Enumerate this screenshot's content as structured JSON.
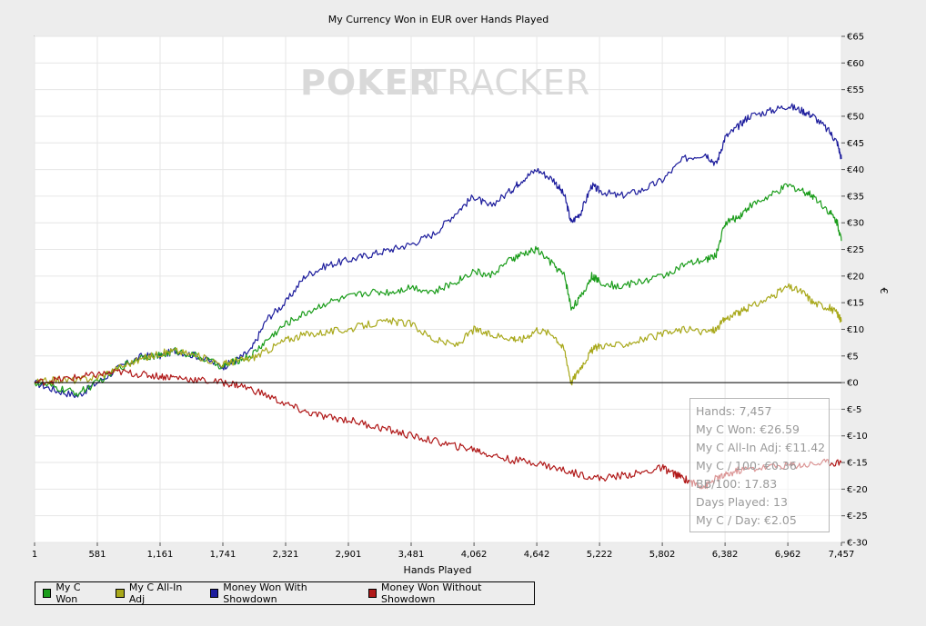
{
  "chart_data": {
    "type": "line",
    "title": "My Currency Won in EUR over Hands Played",
    "xlabel": "Hands Played",
    "ylabel": "€",
    "xlim": [
      1,
      7457
    ],
    "ylim": [
      -30,
      65
    ],
    "x_ticks": [
      "1",
      "581",
      "1,161",
      "1,741",
      "2,321",
      "2,901",
      "3,481",
      "4,062",
      "4,642",
      "5,222",
      "5,802",
      "6,382",
      "6,962",
      "7,457"
    ],
    "y_ticks": [
      "€65",
      "€60",
      "€55",
      "€50",
      "€45",
      "€40",
      "€35",
      "€30",
      "€25",
      "€20",
      "€15",
      "€10",
      "€5",
      "€0",
      "€-5",
      "€-10",
      "€-15",
      "€-20",
      "€-25",
      "€-30"
    ],
    "grid": true,
    "legend_position": "bottom-left",
    "watermark": {
      "part1": "POKER",
      "part2": "TRACKER"
    },
    "series": [
      {
        "name": "Money Won With Showdown",
        "color": "#1c1c9c",
        "points": [
          [
            1,
            0
          ],
          [
            200,
            -1.5
          ],
          [
            400,
            -2.5
          ],
          [
            581,
            0
          ],
          [
            800,
            3
          ],
          [
            1000,
            5
          ],
          [
            1161,
            5
          ],
          [
            1300,
            6
          ],
          [
            1500,
            5
          ],
          [
            1741,
            3
          ],
          [
            1850,
            4
          ],
          [
            2000,
            6
          ],
          [
            2150,
            12
          ],
          [
            2321,
            15
          ],
          [
            2500,
            20
          ],
          [
            2700,
            22
          ],
          [
            2901,
            23
          ],
          [
            3100,
            24
          ],
          [
            3300,
            25
          ],
          [
            3481,
            26
          ],
          [
            3700,
            28
          ],
          [
            3900,
            32
          ],
          [
            4062,
            35
          ],
          [
            4200,
            33
          ],
          [
            4400,
            36
          ],
          [
            4500,
            38
          ],
          [
            4642,
            40
          ],
          [
            4800,
            38
          ],
          [
            4900,
            35
          ],
          [
            4960,
            30
          ],
          [
            5050,
            32
          ],
          [
            5150,
            37
          ],
          [
            5222,
            36
          ],
          [
            5400,
            35
          ],
          [
            5600,
            36
          ],
          [
            5802,
            38
          ],
          [
            6000,
            42
          ],
          [
            6200,
            43
          ],
          [
            6300,
            41
          ],
          [
            6382,
            46
          ],
          [
            6500,
            48
          ],
          [
            6600,
            50
          ],
          [
            6800,
            51
          ],
          [
            6962,
            52
          ],
          [
            7100,
            51
          ],
          [
            7200,
            50
          ],
          [
            7350,
            47
          ],
          [
            7420,
            45
          ],
          [
            7457,
            42
          ]
        ]
      },
      {
        "name": "My C Won",
        "color": "#1a9c1a",
        "points": [
          [
            1,
            0
          ],
          [
            200,
            -1
          ],
          [
            400,
            -2
          ],
          [
            581,
            0
          ],
          [
            800,
            3
          ],
          [
            1000,
            5
          ],
          [
            1161,
            5
          ],
          [
            1300,
            6
          ],
          [
            1500,
            5
          ],
          [
            1741,
            3
          ],
          [
            1850,
            4
          ],
          [
            2000,
            5
          ],
          [
            2150,
            8
          ],
          [
            2321,
            11
          ],
          [
            2500,
            13
          ],
          [
            2700,
            15
          ],
          [
            2901,
            16
          ],
          [
            3100,
            17
          ],
          [
            3300,
            17
          ],
          [
            3481,
            18
          ],
          [
            3700,
            17
          ],
          [
            3900,
            19
          ],
          [
            4062,
            21
          ],
          [
            4200,
            20
          ],
          [
            4400,
            23
          ],
          [
            4500,
            24
          ],
          [
            4642,
            25
          ],
          [
            4800,
            22
          ],
          [
            4900,
            20
          ],
          [
            4960,
            14
          ],
          [
            5050,
            16
          ],
          [
            5150,
            20
          ],
          [
            5222,
            19
          ],
          [
            5400,
            18
          ],
          [
            5600,
            19
          ],
          [
            5802,
            20
          ],
          [
            6000,
            22
          ],
          [
            6200,
            23
          ],
          [
            6300,
            24
          ],
          [
            6382,
            30
          ],
          [
            6500,
            31
          ],
          [
            6600,
            33
          ],
          [
            6800,
            35
          ],
          [
            6962,
            37
          ],
          [
            7100,
            36
          ],
          [
            7200,
            35
          ],
          [
            7350,
            32
          ],
          [
            7420,
            30
          ],
          [
            7457,
            26.59
          ]
        ]
      },
      {
        "name": "My C All-In Adj",
        "color": "#a8a81a",
        "points": [
          [
            1,
            0
          ],
          [
            200,
            0.5
          ],
          [
            400,
            0.5
          ],
          [
            581,
            1
          ],
          [
            800,
            3
          ],
          [
            1000,
            4.5
          ],
          [
            1161,
            5.5
          ],
          [
            1300,
            6
          ],
          [
            1500,
            5
          ],
          [
            1741,
            3.5
          ],
          [
            1850,
            4
          ],
          [
            2000,
            4.5
          ],
          [
            2150,
            6
          ],
          [
            2321,
            8
          ],
          [
            2500,
            9
          ],
          [
            2700,
            9.5
          ],
          [
            2901,
            10
          ],
          [
            3100,
            11
          ],
          [
            3300,
            11.5
          ],
          [
            3481,
            11
          ],
          [
            3700,
            8
          ],
          [
            3900,
            7
          ],
          [
            4062,
            10
          ],
          [
            4200,
            9
          ],
          [
            4400,
            8.5
          ],
          [
            4500,
            8
          ],
          [
            4642,
            10
          ],
          [
            4800,
            9
          ],
          [
            4900,
            6
          ],
          [
            4960,
            0
          ],
          [
            5050,
            3
          ],
          [
            5150,
            6
          ],
          [
            5222,
            7
          ],
          [
            5400,
            7
          ],
          [
            5600,
            8
          ],
          [
            5802,
            9
          ],
          [
            6000,
            10
          ],
          [
            6200,
            9.5
          ],
          [
            6300,
            10
          ],
          [
            6382,
            12
          ],
          [
            6500,
            13
          ],
          [
            6600,
            14
          ],
          [
            6800,
            16
          ],
          [
            6962,
            18
          ],
          [
            7100,
            17
          ],
          [
            7200,
            15
          ],
          [
            7350,
            14
          ],
          [
            7420,
            13
          ],
          [
            7457,
            11.42
          ]
        ]
      },
      {
        "name": "Money Won Without Showdown",
        "color": "#b01818",
        "points": [
          [
            1,
            0
          ],
          [
            200,
            0.5
          ],
          [
            400,
            1
          ],
          [
            581,
            1.5
          ],
          [
            800,
            2
          ],
          [
            1000,
            1.5
          ],
          [
            1161,
            1.2
          ],
          [
            1300,
            1
          ],
          [
            1500,
            0.5
          ],
          [
            1741,
            0
          ],
          [
            1900,
            -0.5
          ],
          [
            2100,
            -2
          ],
          [
            2321,
            -4
          ],
          [
            2500,
            -5.5
          ],
          [
            2700,
            -6.5
          ],
          [
            2901,
            -7
          ],
          [
            3100,
            -8
          ],
          [
            3300,
            -9
          ],
          [
            3481,
            -10
          ],
          [
            3700,
            -11
          ],
          [
            3900,
            -12
          ],
          [
            4062,
            -12.5
          ],
          [
            4200,
            -13.5
          ],
          [
            4400,
            -14.5
          ],
          [
            4642,
            -15
          ],
          [
            4800,
            -16
          ],
          [
            5000,
            -17
          ],
          [
            5222,
            -18
          ],
          [
            5400,
            -17.5
          ],
          [
            5600,
            -17
          ],
          [
            5802,
            -16
          ],
          [
            5900,
            -17
          ],
          [
            6000,
            -18
          ],
          [
            6100,
            -19
          ],
          [
            6200,
            -19.5
          ],
          [
            6300,
            -18
          ],
          [
            6382,
            -17.5
          ],
          [
            6500,
            -16.5
          ],
          [
            6700,
            -16
          ],
          [
            6962,
            -15.5
          ],
          [
            7100,
            -15.5
          ],
          [
            7300,
            -15
          ],
          [
            7457,
            -15
          ]
        ]
      }
    ]
  },
  "stats": [
    "Hands: 7,457",
    "My C Won: €26.59",
    "My C All-In Adj: €11.42",
    "My C / 100: €0.36",
    "BB/100: 17.83",
    "Days Played: 13",
    "My C / Day: €2.05"
  ],
  "legend": [
    {
      "label": "My C Won",
      "color": "#1a9c1a"
    },
    {
      "label": "My C All-In Adj",
      "color": "#a8a81a"
    },
    {
      "label": "Money Won With Showdown",
      "color": "#1c1c9c"
    },
    {
      "label": "Money Won Without Showdown",
      "color": "#b01818"
    }
  ]
}
